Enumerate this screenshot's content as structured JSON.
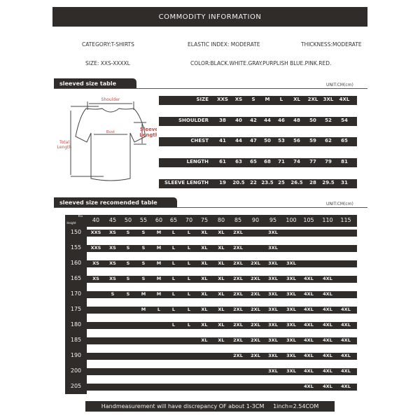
{
  "header": {
    "title": "COMMODITY INFORMATION"
  },
  "info": {
    "category": "CATEGORY:T-SHIRTS",
    "elastic": "ELASTIC INDEX: MODERATE",
    "thickness": "THICKNESS:MODERATE",
    "size": "SIZE: XXS-XXXXL",
    "color": "COLOR:BLACK.WHITE.GRAY.PURPLISH BLUE.PINK.RED."
  },
  "size_section": {
    "title": "sleeved size table",
    "unit": "UNIT:CM(cm)"
  },
  "diagram": {
    "shoulder": "Shoulder",
    "bust": "Bust",
    "sleeve1": "Sleeve",
    "sleeve2": "Length",
    "total1": "Total",
    "total2": "Length"
  },
  "size_table": [
    {
      "label": "SIZE",
      "values": [
        "XXS",
        "XS",
        "S",
        "M",
        "L",
        "XL",
        "2XL",
        "3XL",
        "4XL"
      ]
    },
    {
      "label": "SHOULDER",
      "values": [
        "38",
        "40",
        "42",
        "44",
        "46",
        "48",
        "50",
        "52",
        "54"
      ]
    },
    {
      "label": "CHEST",
      "values": [
        "41",
        "44",
        "47",
        "50",
        "53",
        "56",
        "59",
        "62",
        "65"
      ]
    },
    {
      "label": "LENGTH",
      "values": [
        "61",
        "63",
        "65",
        "68",
        "71",
        "74",
        "77",
        "79",
        "81"
      ]
    },
    {
      "label": "SLEEVE LENGTH",
      "values": [
        "19",
        "20.5",
        "22",
        "23.5",
        "25",
        "26.5",
        "28",
        "29.5",
        "31"
      ]
    }
  ],
  "rec_section": {
    "title": "sleeved size recomended table",
    "unit": "UNIT:CM(cm)"
  },
  "rec_table": {
    "kg_label": "KG",
    "height_label": "Height",
    "weights": [
      "40",
      "45",
      "50",
      "55",
      "60",
      "65",
      "70",
      "75",
      "80",
      "85",
      "90",
      "95",
      "100",
      "105",
      "110",
      "115"
    ],
    "rows": [
      {
        "height": "150",
        "cells": [
          "XXS",
          "XS",
          "S",
          "S",
          "M",
          "L",
          "L",
          "XL",
          "XL",
          "2XL",
          "",
          "3XL",
          "",
          "",
          "",
          ""
        ]
      },
      {
        "height": "155",
        "cells": [
          "XXS",
          "XS",
          "S",
          "S",
          "M",
          "L",
          "L",
          "XL",
          "XL",
          "2XL",
          "",
          "3XL",
          "",
          "",
          "",
          ""
        ]
      },
      {
        "height": "160",
        "cells": [
          "XS",
          "XS",
          "S",
          "S",
          "M",
          "L",
          "L",
          "XL",
          "XL",
          "2XL",
          "2XL",
          "3XL",
          "3XL",
          "",
          "",
          ""
        ]
      },
      {
        "height": "165",
        "cells": [
          "XS",
          "XS",
          "S",
          "S",
          "M",
          "L",
          "L",
          "XL",
          "XL",
          "2XL",
          "2XL",
          "3XL",
          "3XL",
          "4XL",
          "4XL",
          ""
        ]
      },
      {
        "height": "170",
        "cells": [
          "",
          "S",
          "S",
          "M",
          "M",
          "L",
          "L",
          "XL",
          "XL",
          "2XL",
          "2XL",
          "3XL",
          "3XL",
          "4XL",
          "4XL",
          ""
        ]
      },
      {
        "height": "175",
        "cells": [
          "",
          "",
          "",
          "M",
          "L",
          "L",
          "L",
          "XL",
          "XL",
          "2XL",
          "2XL",
          "3XL",
          "3XL",
          "4XL",
          "4XL",
          "4XL"
        ]
      },
      {
        "height": "180",
        "cells": [
          "",
          "",
          "",
          "",
          "",
          "L",
          "L",
          "XL",
          "XL",
          "2XL",
          "2XL",
          "3XL",
          "3XL",
          "4XL",
          "4XL",
          "4XL"
        ]
      },
      {
        "height": "185",
        "cells": [
          "",
          "",
          "",
          "",
          "",
          "",
          "",
          "XL",
          "XL",
          "2XL",
          "2XL",
          "3XL",
          "3XL",
          "4XL",
          "4XL",
          "4XL"
        ]
      },
      {
        "height": "190",
        "cells": [
          "",
          "",
          "",
          "",
          "",
          "",
          "",
          "",
          "",
          "2XL",
          "2XL",
          "3XL",
          "3XL",
          "4XL",
          "4XL",
          "4XL"
        ]
      },
      {
        "height": "200",
        "cells": [
          "",
          "",
          "",
          "",
          "",
          "",
          "",
          "",
          "",
          "",
          "",
          "3XL",
          "3XL",
          "4XL",
          "4XL",
          "4XL"
        ]
      },
      {
        "height": "205",
        "cells": [
          "",
          "",
          "",
          "",
          "",
          "",
          "",
          "",
          "",
          "",
          "",
          "",
          "",
          "4XL",
          "4XL",
          "4XL"
        ]
      }
    ]
  },
  "footer": {
    "note": "Handmeasurement will have discrepancy OF about 1-3CM     1inch=2.54COM"
  },
  "colors": {
    "dark": "#2f2c2a",
    "diagram_label": "#c0504d"
  }
}
